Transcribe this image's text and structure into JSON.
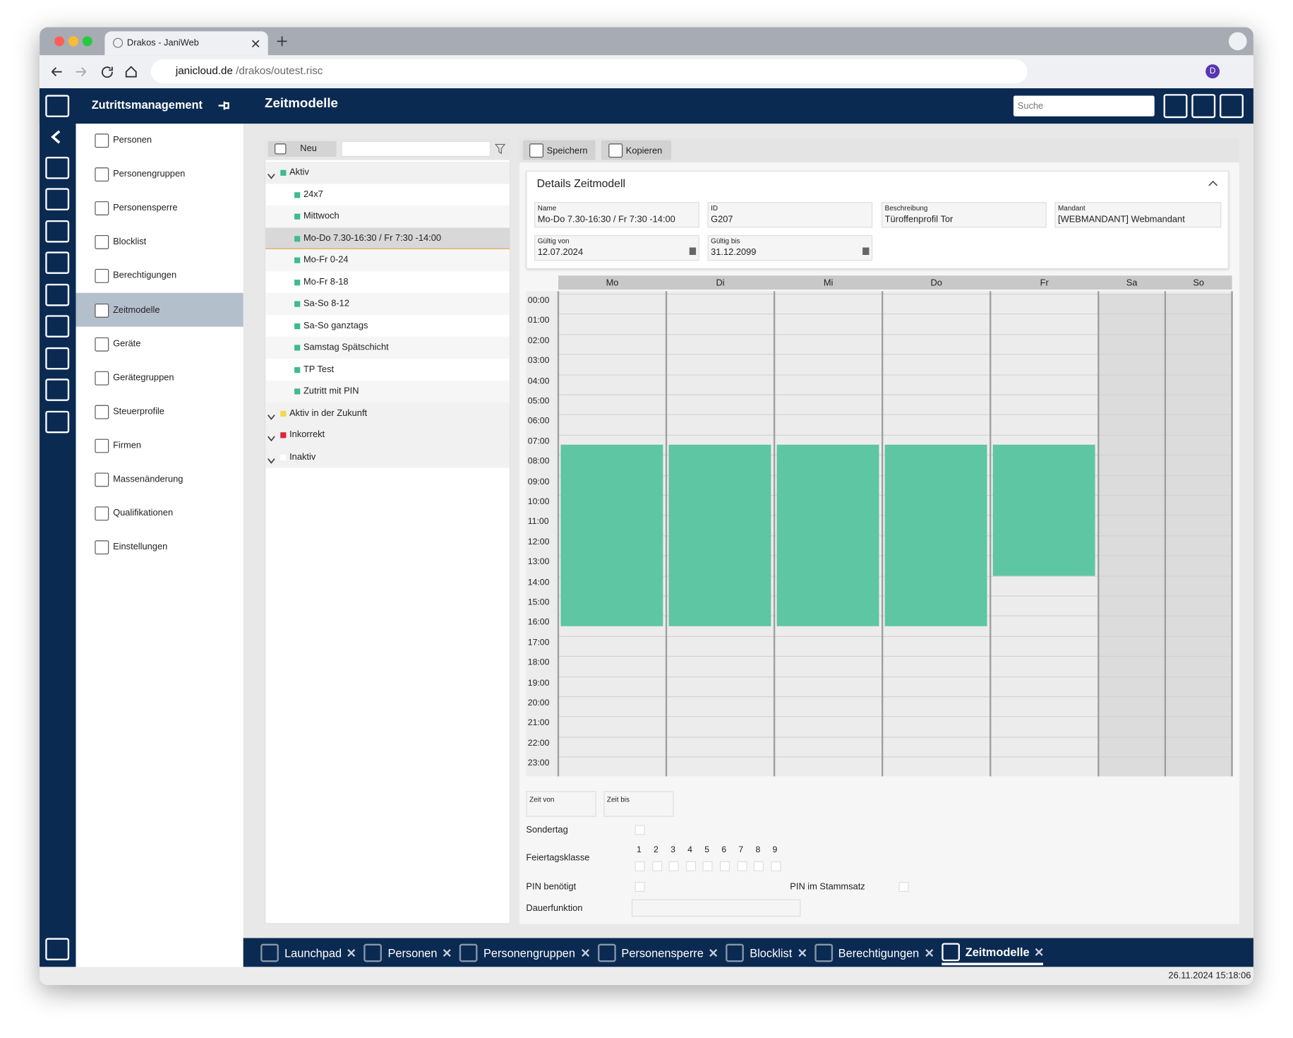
{
  "browser": {
    "tab_title": "Drakos - JaniWeb",
    "url_host": "janicloud.de",
    "url_path": "/drakos/outest.risc",
    "profile_initial": "D"
  },
  "header": {
    "module": "Zutrittsmanagement",
    "page_title": "Zeitmodelle",
    "search_placeholder": "Suche"
  },
  "sidebar": {
    "items": [
      "Personen",
      "Personengruppen",
      "Personensperre",
      "Blocklist",
      "Berechtigungen",
      "Zeitmodelle",
      "Geräte",
      "Gerätegruppen",
      "Steuerprofile",
      "Firmen",
      "Massenänderung",
      "Qualifikationen",
      "Einstellungen"
    ],
    "active": 5
  },
  "tree": {
    "new_button": "Neu",
    "groups": [
      {
        "label": "Aktiv",
        "color": "#3dbb8c",
        "items": [
          "24x7",
          "Mittwoch",
          "Mo-Do 7.30-16:30 / Fr 7:30 -14:00",
          "Mo-Fr 0-24",
          "Mo-Fr 8-18",
          "Sa-So 8-12",
          "Sa-So ganztags",
          "Samstag Spätschicht",
          "TP Test",
          "Zutritt mit PIN"
        ]
      },
      {
        "label": "Aktiv in der Zukunft",
        "color": "#f2d84b",
        "items": []
      },
      {
        "label": "Inkorrekt",
        "color": "#e0223c",
        "items": []
      },
      {
        "label": "Inaktiv",
        "color": "#ffffff",
        "items": []
      }
    ],
    "selected": {
      "group": 0,
      "item": 2
    }
  },
  "toolbar": {
    "save": "Speichern",
    "copy": "Kopieren"
  },
  "details": {
    "title": "Details Zeitmodell",
    "fields": [
      {
        "label": "Name",
        "value": "Mo-Do 7.30-16:30 / Fr 7:30 -14:00"
      },
      {
        "label": "ID",
        "value": "G207"
      },
      {
        "label": "Beschreibung",
        "value": "Türoffenprofil Tor"
      },
      {
        "label": "Mandant",
        "value": "[WEBMANDANT] Webmandant"
      },
      {
        "label": "Gültig von",
        "value": "12.07.2024"
      },
      {
        "label": "Gültig bis",
        "value": "31.12.2099"
      }
    ]
  },
  "schedule": {
    "days": [
      "Mo",
      "Di",
      "Mi",
      "Do",
      "Fr",
      "Sa",
      "So"
    ],
    "hours": [
      "00:00",
      "01:00",
      "02:00",
      "03:00",
      "04:00",
      "05:00",
      "06:00",
      "07:00",
      "08:00",
      "09:00",
      "10:00",
      "11:00",
      "12:00",
      "13:00",
      "14:00",
      "15:00",
      "16:00",
      "17:00",
      "18:00",
      "19:00",
      "20:00",
      "21:00",
      "22:00",
      "23:00"
    ],
    "blocks": [
      {
        "day": 0,
        "start": 7.5,
        "end": 16.5
      },
      {
        "day": 1,
        "start": 7.5,
        "end": 16.5
      },
      {
        "day": 2,
        "start": 7.5,
        "end": 16.5
      },
      {
        "day": 3,
        "start": 7.5,
        "end": 16.5
      },
      {
        "day": 4,
        "start": 7.5,
        "end": 14
      }
    ],
    "block_color": "#5ec6a2"
  },
  "form": {
    "time_from": "Zeit von",
    "time_to": "Zeit bis",
    "special_day": "Sondertag",
    "holiday_class": "Feiertagsklasse",
    "holiday_numbers": [
      "1",
      "2",
      "3",
      "4",
      "5",
      "6",
      "7",
      "8",
      "9"
    ],
    "pin_required": "PIN benötigt",
    "pin_master": "PIN im Stammsatz",
    "permanent": "Dauerfunktion"
  },
  "taskbar": {
    "tabs": [
      "Launchpad",
      "Personen",
      "Personengruppen",
      "Personensperre",
      "Blocklist",
      "Berechtigungen",
      "Zeitmodelle"
    ],
    "active": 6
  },
  "status": {
    "datetime": "26.11.2024 15:18:06"
  }
}
